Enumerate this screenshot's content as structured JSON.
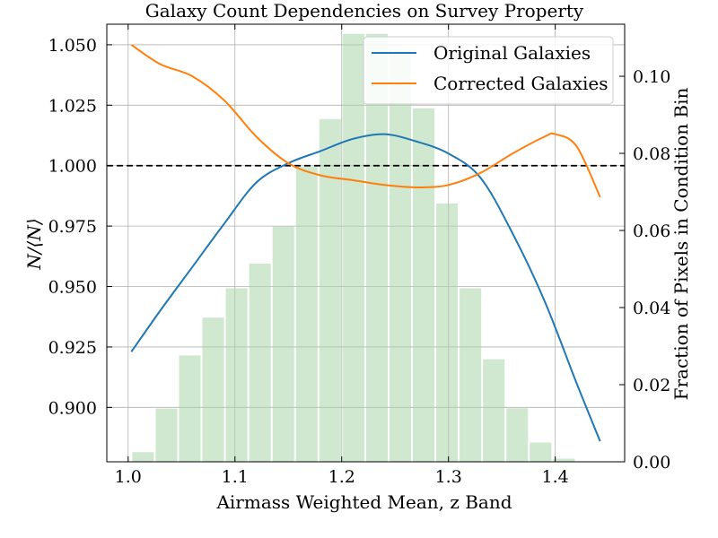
{
  "chart_data": {
    "type": "line",
    "title": "Galaxy Count Dependencies on Survey Property",
    "xlabel": "Airmass Weighted Mean, z Band",
    "ylabel": "N/⟨N⟩",
    "ylabel_right": "Fraction of Pixels in Condition Bin",
    "xlim": [
      0.98,
      1.465
    ],
    "ylim": [
      0.8775,
      1.0585
    ],
    "ylim_right": [
      0.0,
      0.1135
    ],
    "x_ticks": [
      1.0,
      1.1,
      1.2,
      1.3,
      1.4
    ],
    "x_tick_labels": [
      "1.0",
      "1.1",
      "1.2",
      "1.3",
      "1.4"
    ],
    "y_ticks": [
      0.9,
      0.925,
      0.95,
      0.975,
      1.0,
      1.025,
      1.05
    ],
    "y_tick_labels": [
      "0.900",
      "0.925",
      "0.950",
      "0.975",
      "1.000",
      "1.025",
      "1.050"
    ],
    "y_ticks_right": [
      0.0,
      0.02,
      0.04,
      0.06,
      0.08,
      0.1
    ],
    "y_tick_labels_right": [
      "0.00",
      "0.02",
      "0.04",
      "0.06",
      "0.08",
      "0.10"
    ],
    "grid": true,
    "legend_position": "top-right",
    "reference_line": {
      "y": 1.0,
      "style": "dashed",
      "color": "#000000"
    },
    "series": [
      {
        "name": "Original Galaxies",
        "color": "#1f77b4",
        "x": [
          1.003,
          1.03,
          1.06,
          1.09,
          1.12,
          1.15,
          1.18,
          1.21,
          1.24,
          1.27,
          1.3,
          1.33,
          1.36,
          1.39,
          1.42,
          1.442
        ],
        "y": [
          0.923,
          0.94,
          0.958,
          0.976,
          0.993,
          1.001,
          1.006,
          1.011,
          1.013,
          1.01,
          1.005,
          0.995,
          0.972,
          0.944,
          0.91,
          0.886
        ]
      },
      {
        "name": "Corrected Galaxies",
        "color": "#ff7f0e",
        "x": [
          1.003,
          1.03,
          1.06,
          1.09,
          1.12,
          1.15,
          1.18,
          1.21,
          1.24,
          1.27,
          1.3,
          1.33,
          1.36,
          1.39,
          1.4,
          1.42,
          1.442
        ],
        "y": [
          1.05,
          1.042,
          1.037,
          1.027,
          1.012,
          1.001,
          0.996,
          0.994,
          0.992,
          0.991,
          0.992,
          0.997,
          1.005,
          1.012,
          1.013,
          1.008,
          0.987
        ]
      }
    ],
    "histogram": {
      "axis": "right",
      "color": "#a8d5a8",
      "bin_edges": [
        1.003,
        1.0249,
        1.0468,
        1.0687,
        1.0906,
        1.1125,
        1.1344,
        1.1563,
        1.1782,
        1.2001,
        1.222,
        1.2439,
        1.2658,
        1.2877,
        1.3096,
        1.3315,
        1.3534,
        1.3753,
        1.3972,
        1.4191,
        1.441
      ],
      "values": [
        0.0025,
        0.0138,
        0.0276,
        0.0374,
        0.045,
        0.0514,
        0.061,
        0.0766,
        0.0889,
        0.111,
        0.111,
        0.1066,
        0.0917,
        0.067,
        0.045,
        0.0266,
        0.0139,
        0.005,
        0.0008,
        0.0
      ]
    }
  }
}
